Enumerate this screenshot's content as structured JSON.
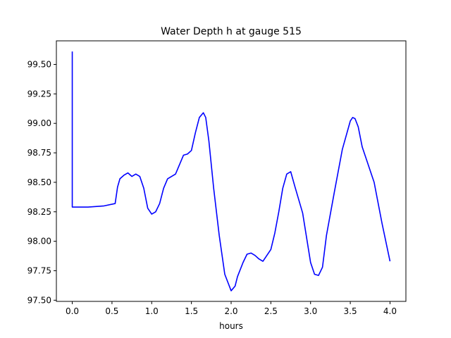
{
  "chart_data": {
    "type": "line",
    "title": "Water Depth h at gauge 515",
    "xlabel": "hours",
    "ylabel": "",
    "xlim": [
      -0.2,
      4.2
    ],
    "ylim": [
      97.49,
      99.7
    ],
    "grid": false,
    "xticks": [
      0.0,
      0.5,
      1.0,
      1.5,
      2.0,
      2.5,
      3.0,
      3.5,
      4.0
    ],
    "xtick_labels": [
      "0.0",
      "0.5",
      "1.0",
      "1.5",
      "2.0",
      "2.5",
      "3.0",
      "3.5",
      "4.0"
    ],
    "yticks": [
      97.5,
      97.75,
      98.0,
      98.25,
      98.5,
      98.75,
      99.0,
      99.25,
      99.5
    ],
    "ytick_labels": [
      "97.50",
      "97.75",
      "98.00",
      "98.25",
      "98.50",
      "98.75",
      "99.00",
      "99.25",
      "99.50"
    ],
    "series": [
      {
        "color": "#0000ff",
        "x": [
          0.0,
          0.0,
          0.02,
          0.2,
          0.4,
          0.54,
          0.57,
          0.6,
          0.65,
          0.7,
          0.75,
          0.8,
          0.85,
          0.9,
          0.95,
          1.0,
          1.05,
          1.1,
          1.15,
          1.2,
          1.25,
          1.3,
          1.35,
          1.4,
          1.45,
          1.5,
          1.55,
          1.6,
          1.65,
          1.68,
          1.72,
          1.78,
          1.85,
          1.92,
          2.0,
          2.05,
          2.08,
          2.15,
          2.2,
          2.25,
          2.3,
          2.35,
          2.4,
          2.45,
          2.5,
          2.55,
          2.6,
          2.65,
          2.7,
          2.75,
          2.8,
          2.9,
          3.0,
          3.05,
          3.1,
          3.15,
          3.2,
          3.3,
          3.4,
          3.5,
          3.53,
          3.56,
          3.6,
          3.65,
          3.7,
          3.8,
          3.9,
          4.0
        ],
        "y": [
          99.61,
          98.29,
          98.29,
          98.29,
          98.3,
          98.32,
          98.46,
          98.53,
          98.56,
          98.58,
          98.55,
          98.57,
          98.55,
          98.45,
          98.28,
          98.23,
          98.25,
          98.32,
          98.45,
          98.53,
          98.55,
          98.57,
          98.65,
          98.73,
          98.74,
          98.77,
          98.92,
          99.05,
          99.09,
          99.05,
          98.85,
          98.45,
          98.05,
          97.72,
          97.58,
          97.62,
          97.7,
          97.82,
          97.89,
          97.9,
          97.88,
          97.85,
          97.83,
          97.88,
          97.93,
          98.07,
          98.25,
          98.45,
          98.57,
          98.59,
          98.47,
          98.24,
          97.82,
          97.72,
          97.71,
          97.78,
          98.05,
          98.42,
          98.78,
          99.02,
          99.05,
          99.04,
          98.97,
          98.8,
          98.7,
          98.5,
          98.15,
          97.83
        ]
      }
    ]
  }
}
